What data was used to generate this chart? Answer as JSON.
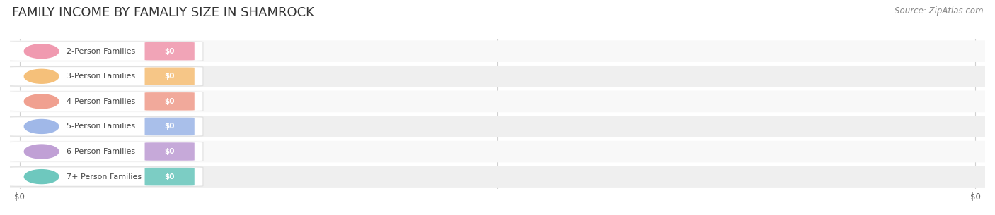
{
  "title": "FAMILY INCOME BY FAMALIY SIZE IN SHAMROCK",
  "source_text": "Source: ZipAtlas.com",
  "categories": [
    "2-Person Families",
    "3-Person Families",
    "4-Person Families",
    "5-Person Families",
    "6-Person Families",
    "7+ Person Families"
  ],
  "values": [
    0,
    0,
    0,
    0,
    0,
    0
  ],
  "bar_colors": [
    "#f09ab0",
    "#f5c07a",
    "#f0a090",
    "#a0b8e8",
    "#c0a0d5",
    "#6ec8be"
  ],
  "bg_color": "#ffffff",
  "row_light": "#f8f8f8",
  "row_dark": "#efefef",
  "grid_color": "#d0d0d0",
  "pill_bg": "#ffffff",
  "pill_edge": "#e0e0e0",
  "title_fontsize": 13,
  "source_fontsize": 8.5,
  "cat_fontsize": 8.0,
  "val_fontsize": 7.5
}
